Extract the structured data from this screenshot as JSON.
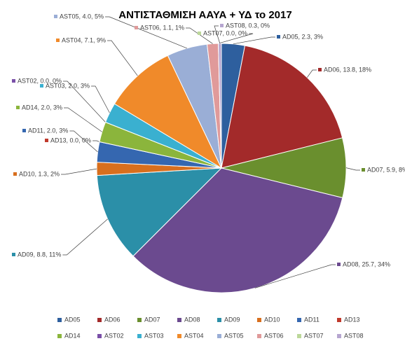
{
  "chart_data": {
    "type": "pie",
    "title": "ΑΝΤΙΣΤΑΘΜΙΣΗ ΑΑΥΑ + ΥΔ το 2017",
    "categories": [
      "AD05",
      "AD06",
      "AD07",
      "AD08",
      "AD09",
      "AD10",
      "AD11",
      "AD13",
      "AD14",
      "AST02",
      "AST03",
      "AST04",
      "AST05",
      "AST06",
      "AST07",
      "AST08"
    ],
    "values": [
      2.3,
      13.8,
      5.9,
      25.7,
      8.8,
      1.3,
      2.0,
      0.0,
      2.0,
      0.0,
      2.0,
      7.1,
      4.0,
      1.1,
      0.0,
      0.3
    ],
    "value_labels": [
      "AD05, 2.3, 3%",
      "AD06, 13.8, 18%",
      "AD07, 5.9, 8%",
      "AD08, 25.7, 34%",
      "AD09, 8.8, 11%",
      "AD10, 1.3, 2%",
      "AD11, 2.0, 3%",
      "AD13, 0.0, 0%",
      "AD14, 2.0, 3%",
      "AST02, 0.0, 0%",
      "AST03, 2.0, 3%",
      "AST04, 7.1, 9%",
      "AST05, 4.0, 5%",
      "AST06, 1.1, 1%",
      "AST07, 0.0, 0%",
      "AST08, 0.3, 0%"
    ],
    "colors": [
      "#2e5f9e",
      "#a32a2a",
      "#6a8f2e",
      "#6b4a8f",
      "#2b8fa8",
      "#d86f1e",
      "#3567b0",
      "#c0392b",
      "#8bb53c",
      "#7a4fa8",
      "#3ab0d0",
      "#f08a2a",
      "#9aaed6",
      "#e09a9a",
      "#bcd89a",
      "#b6a6d0"
    ],
    "legend": "bottom"
  }
}
